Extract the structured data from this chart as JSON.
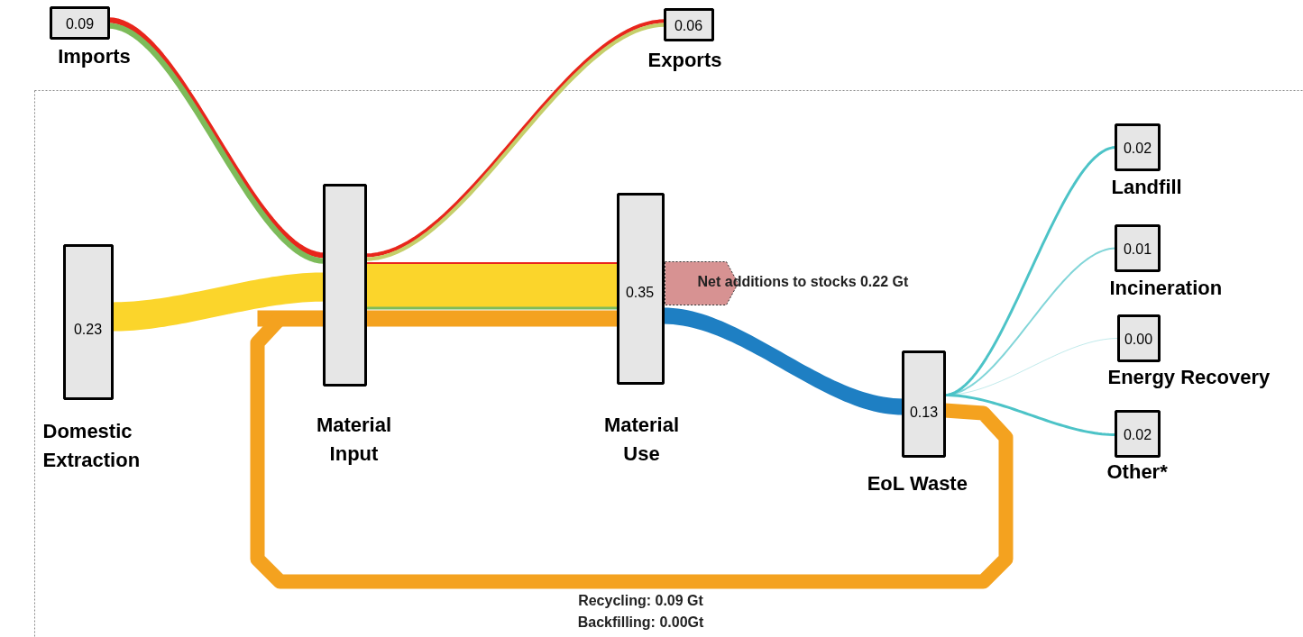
{
  "chart_data": {
    "type": "other",
    "categories": [
      "Imports",
      "Exports",
      "Domestic\nExtraction",
      "Material\nInput",
      "Material\nUse",
      "EoL Waste",
      "Landfill",
      "Incineration",
      "Energy Recovery",
      "Other*"
    ],
    "values": [
      0.09,
      0.06,
      0.23,
      null,
      0.35,
      0.13,
      0.02,
      0.01,
      0.0,
      0.02
    ],
    "value_labels": [
      "0.09",
      "0.06",
      "0.23",
      null,
      "0.35",
      "0.13",
      "0.02",
      "0.01",
      "0.00",
      "0.02"
    ],
    "annotations": [
      "Net additions to stocks 0.22 Gt",
      "Recycling: 0.09 Gt",
      "Backfilling: 0.00Gt"
    ]
  }
}
